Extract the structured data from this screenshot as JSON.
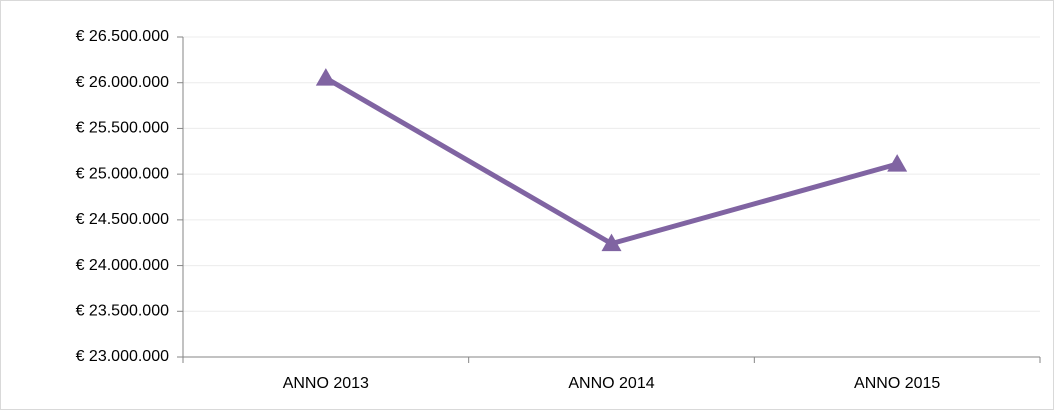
{
  "chart_data": {
    "type": "line",
    "categories": [
      "ANNO 2013",
      "ANNO 2014",
      "ANNO 2015"
    ],
    "values": [
      26050000,
      24240000,
      25110000
    ],
    "color": "#8064a2",
    "marker": "triangle",
    "ylim": [
      23000000,
      26500000
    ],
    "yticks": [
      {
        "value": 23000000,
        "label": "€ 23.000.000"
      },
      {
        "value": 23500000,
        "label": "€ 23.500.000"
      },
      {
        "value": 24000000,
        "label": "€ 24.000.000"
      },
      {
        "value": 24500000,
        "label": "€ 24.500.000"
      },
      {
        "value": 25000000,
        "label": "€ 25.000.000"
      },
      {
        "value": 25500000,
        "label": "€ 25.500.000"
      },
      {
        "value": 26000000,
        "label": "€ 26.000.000"
      },
      {
        "value": 26500000,
        "label": "€ 26.500.000"
      }
    ],
    "grid": true
  }
}
